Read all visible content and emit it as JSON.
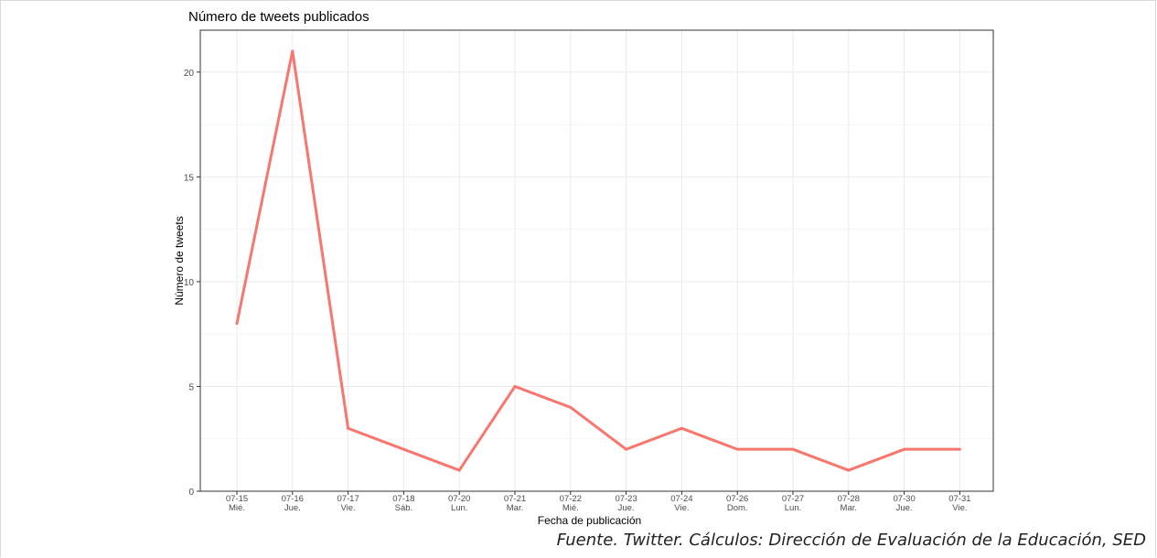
{
  "chart_data": {
    "type": "line",
    "title": "Número de tweets publicados",
    "xlabel": "Fecha de publicación",
    "ylabel": "Número de tweets",
    "x": [
      "07-15",
      "07-16",
      "07-17",
      "07-18",
      "07-20",
      "07-21",
      "07-22",
      "07-23",
      "07-24",
      "07-26",
      "07-27",
      "07-28",
      "07-30",
      "07-31"
    ],
    "x_sublabels": [
      "Mié.",
      "Jue.",
      "Vie.",
      "Sáb.",
      "Lun.",
      "Mar.",
      "Mié.",
      "Jue.",
      "Vie.",
      "Dom.",
      "Lun.",
      "Mar.",
      "Jue.",
      "Vie."
    ],
    "series": [
      {
        "values": [
          8,
          21,
          3,
          2,
          1,
          5,
          4,
          2,
          3,
          2,
          2,
          1,
          2,
          2
        ],
        "color": "#f8766d"
      }
    ],
    "ylim": [
      0,
      22
    ],
    "yticks": [
      0,
      5,
      10,
      15,
      20
    ],
    "grid": true,
    "legend": "none"
  },
  "source_note": "Fuente. Twitter. Cálculos: Dirección de Evaluación de la Educación, SED"
}
